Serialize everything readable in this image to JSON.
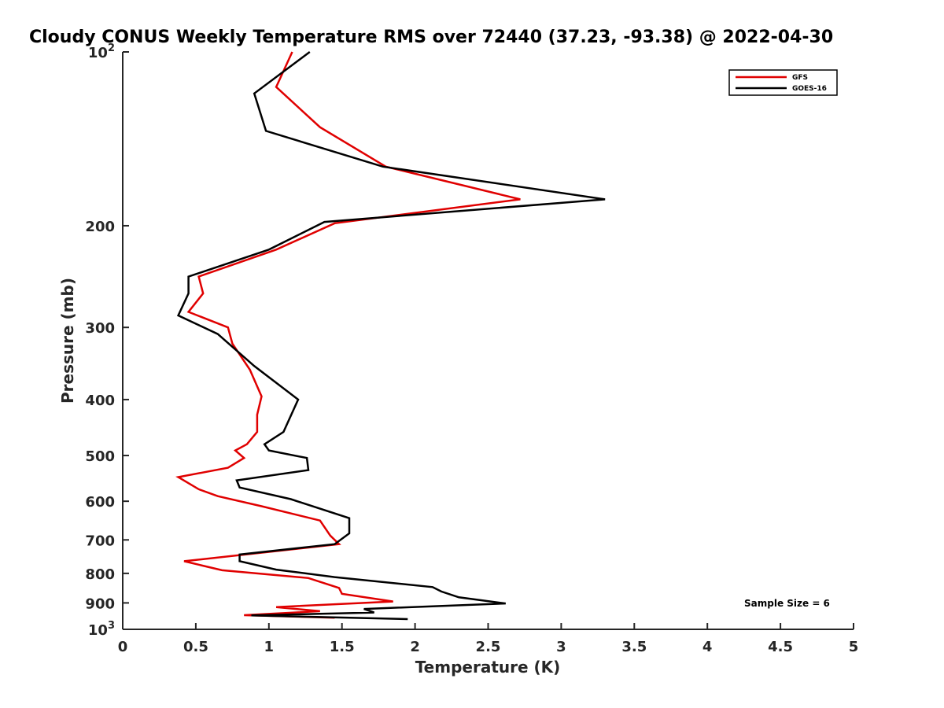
{
  "chart_data": {
    "type": "line",
    "title": "Cloudy CONUS Weekly Temperature RMS over 72440 (37.23, -93.38) @ 2022-04-30",
    "xlabel": "Temperature (K)",
    "ylabel": "Pressure (mb)",
    "xlim": [
      0,
      5
    ],
    "ylim": [
      100,
      1000
    ],
    "y_scale": "log",
    "y_reversed": true,
    "grid": false,
    "legend_position": "top-right",
    "x_ticks": [
      "0",
      "0.5",
      "1",
      "1.5",
      "2",
      "2.5",
      "3",
      "3.5",
      "4",
      "4.5",
      "5"
    ],
    "y_ticks": [
      {
        "value": 100,
        "label": "10",
        "sup": "2"
      },
      {
        "value": 200,
        "label": "200",
        "sup": ""
      },
      {
        "value": 300,
        "label": "300",
        "sup": ""
      },
      {
        "value": 400,
        "label": "400",
        "sup": ""
      },
      {
        "value": 500,
        "label": "500",
        "sup": ""
      },
      {
        "value": 600,
        "label": "600",
        "sup": ""
      },
      {
        "value": 700,
        "label": "700",
        "sup": ""
      },
      {
        "value": 800,
        "label": "800",
        "sup": ""
      },
      {
        "value": 900,
        "label": "900",
        "sup": ""
      },
      {
        "value": 1000,
        "label": "10",
        "sup": "3"
      }
    ],
    "annotation": "Sample Size = 6",
    "series": [
      {
        "name": "GFS",
        "color": "#e00000",
        "points": [
          [
            1.16,
            100
          ],
          [
            1.05,
            115
          ],
          [
            1.35,
            135
          ],
          [
            1.8,
            158
          ],
          [
            2.72,
            180
          ],
          [
            1.45,
            198
          ],
          [
            1.05,
            220
          ],
          [
            0.52,
            245
          ],
          [
            0.55,
            262
          ],
          [
            0.45,
            282
          ],
          [
            0.72,
            300
          ],
          [
            0.75,
            320
          ],
          [
            0.87,
            355
          ],
          [
            0.95,
            395
          ],
          [
            0.92,
            425
          ],
          [
            0.92,
            455
          ],
          [
            0.85,
            478
          ],
          [
            0.77,
            490
          ],
          [
            0.83,
            505
          ],
          [
            0.72,
            525
          ],
          [
            0.38,
            545
          ],
          [
            0.52,
            572
          ],
          [
            0.65,
            588
          ],
          [
            0.95,
            612
          ],
          [
            1.35,
            648
          ],
          [
            1.42,
            688
          ],
          [
            1.48,
            712
          ],
          [
            0.42,
            762
          ],
          [
            0.68,
            790
          ],
          [
            1.27,
            815
          ],
          [
            1.48,
            848
          ],
          [
            1.5,
            868
          ],
          [
            1.85,
            895
          ],
          [
            1.05,
            915
          ],
          [
            1.35,
            930
          ],
          [
            0.83,
            945
          ],
          [
            1.45,
            955
          ]
        ]
      },
      {
        "name": "GOES-16",
        "color": "#000000",
        "points": [
          [
            1.28,
            100
          ],
          [
            0.9,
            118
          ],
          [
            0.98,
            137
          ],
          [
            1.78,
            158
          ],
          [
            3.3,
            180
          ],
          [
            1.38,
            197
          ],
          [
            1.0,
            220
          ],
          [
            0.45,
            245
          ],
          [
            0.45,
            262
          ],
          [
            0.38,
            286
          ],
          [
            0.65,
            308
          ],
          [
            0.9,
            350
          ],
          [
            1.2,
            400
          ],
          [
            1.1,
            455
          ],
          [
            0.97,
            478
          ],
          [
            1.0,
            490
          ],
          [
            1.26,
            505
          ],
          [
            1.27,
            530
          ],
          [
            0.78,
            552
          ],
          [
            0.8,
            568
          ],
          [
            1.15,
            595
          ],
          [
            1.55,
            642
          ],
          [
            1.55,
            682
          ],
          [
            1.45,
            712
          ],
          [
            0.8,
            742
          ],
          [
            0.8,
            762
          ],
          [
            1.05,
            788
          ],
          [
            1.45,
            812
          ],
          [
            2.12,
            845
          ],
          [
            2.18,
            860
          ],
          [
            2.3,
            880
          ],
          [
            2.62,
            902
          ],
          [
            1.65,
            922
          ],
          [
            1.72,
            935
          ],
          [
            0.88,
            946
          ],
          [
            1.95,
            960
          ]
        ]
      }
    ]
  }
}
